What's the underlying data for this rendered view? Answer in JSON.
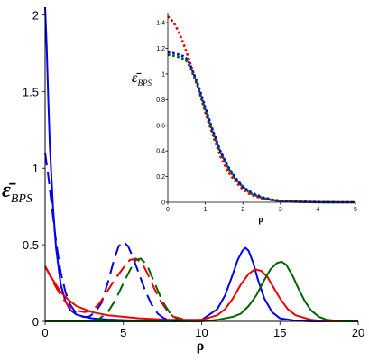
{
  "chart_data": [
    {
      "type": "line",
      "xlabel": "ρ",
      "ylabel_symbol": "ε̄",
      "ylabel_sub": "BPS",
      "xlim": [
        0,
        20
      ],
      "ylim": [
        0,
        2.05
      ],
      "xticks": [
        0,
        5,
        10,
        15,
        20
      ],
      "yticks": [
        0,
        0.5,
        1,
        1.5,
        2
      ],
      "xtick_labels": [
        "0",
        "5",
        "10",
        "15",
        "20"
      ],
      "ytick_labels": [
        "0",
        "0.5",
        "1",
        "1.5",
        "2"
      ],
      "grid": false,
      "series": [
        {
          "color": "#0000ee",
          "style": "solid",
          "x": [
            0,
            0.1,
            0.2,
            0.3,
            0.5,
            0.7,
            1.0,
            1.3,
            1.6,
            2.0,
            2.5,
            3.0,
            4.0,
            5.0,
            6.0,
            8.0,
            10.0,
            11.0,
            11.5,
            12.0,
            12.3,
            12.6,
            12.8,
            13.0,
            13.3,
            13.6,
            14.0,
            14.5,
            15.0,
            16.0,
            17.0,
            20.0
          ],
          "y": [
            2.05,
            1.8,
            1.45,
            1.15,
            0.75,
            0.48,
            0.24,
            0.13,
            0.075,
            0.045,
            0.03,
            0.02,
            0.012,
            0.008,
            0.005,
            0.002,
            0.01,
            0.08,
            0.17,
            0.31,
            0.4,
            0.46,
            0.48,
            0.46,
            0.38,
            0.27,
            0.15,
            0.06,
            0.02,
            0.004,
            0.0,
            0.0
          ]
        },
        {
          "color": "#ee0000",
          "style": "solid",
          "x": [
            0,
            0.5,
            1.0,
            1.5,
            2.0,
            3.0,
            4.0,
            5.0,
            6.0,
            8.0,
            10.0,
            11.0,
            11.5,
            12.0,
            12.5,
            13.0,
            13.4,
            13.8,
            14.2,
            14.6,
            15.0,
            15.5,
            16.0,
            17.0,
            18.0,
            20.0
          ],
          "y": [
            0.36,
            0.27,
            0.19,
            0.14,
            0.1,
            0.06,
            0.04,
            0.03,
            0.02,
            0.01,
            0.01,
            0.04,
            0.08,
            0.15,
            0.24,
            0.31,
            0.34,
            0.33,
            0.29,
            0.22,
            0.15,
            0.08,
            0.04,
            0.01,
            0.0,
            0.0
          ]
        },
        {
          "color": "#006400",
          "style": "solid",
          "x": [
            0,
            10.0,
            11.0,
            12.0,
            12.5,
            13.0,
            13.5,
            14.0,
            14.4,
            14.8,
            15.1,
            15.4,
            15.8,
            16.2,
            16.6,
            17.0,
            17.5,
            18.0,
            19.0,
            20.0
          ],
          "y": [
            0.0,
            0.0,
            0.01,
            0.03,
            0.05,
            0.1,
            0.17,
            0.27,
            0.34,
            0.38,
            0.39,
            0.37,
            0.3,
            0.21,
            0.13,
            0.07,
            0.03,
            0.01,
            0.0,
            0.0
          ]
        },
        {
          "color": "#0000ee",
          "style": "dashed",
          "x": [
            0,
            0.2,
            0.4,
            0.6,
            0.8,
            1.0,
            1.3,
            1.6,
            2.0,
            2.4,
            2.8,
            3.2,
            3.6,
            4.0,
            4.4,
            4.7,
            5.0,
            5.3,
            5.6,
            6.0,
            6.4,
            6.8,
            7.2,
            7.6,
            8.0,
            9.0
          ],
          "y": [
            1.1,
            0.95,
            0.78,
            0.6,
            0.45,
            0.32,
            0.19,
            0.11,
            0.05,
            0.03,
            0.03,
            0.06,
            0.12,
            0.25,
            0.4,
            0.49,
            0.52,
            0.49,
            0.42,
            0.31,
            0.2,
            0.11,
            0.05,
            0.02,
            0.01,
            0.0
          ]
        },
        {
          "color": "#ee0000",
          "style": "dashed",
          "x": [
            0,
            0.3,
            0.6,
            1.0,
            1.5,
            2.0,
            2.5,
            3.0,
            3.5,
            4.0,
            4.5,
            5.0,
            5.4,
            5.8,
            6.2,
            6.6,
            7.0,
            7.4,
            7.8,
            8.2,
            9.0,
            10.0
          ],
          "y": [
            0.36,
            0.3,
            0.24,
            0.17,
            0.1,
            0.07,
            0.06,
            0.07,
            0.12,
            0.2,
            0.28,
            0.35,
            0.4,
            0.41,
            0.38,
            0.3,
            0.21,
            0.13,
            0.07,
            0.03,
            0.01,
            0.0
          ]
        },
        {
          "color": "#006400",
          "style": "dashed",
          "x": [
            3.0,
            3.5,
            4.0,
            4.5,
            5.0,
            5.5,
            5.8,
            6.1,
            6.5,
            7.0,
            7.5,
            8.0,
            8.5,
            9.0
          ],
          "y": [
            0.0,
            0.02,
            0.06,
            0.14,
            0.25,
            0.35,
            0.4,
            0.41,
            0.37,
            0.25,
            0.13,
            0.05,
            0.01,
            0.0
          ]
        }
      ]
    },
    {
      "type": "line",
      "xlabel": "ρ",
      "ylabel_symbol": "ε̄",
      "ylabel_sub": "BPS",
      "xlim": [
        0,
        5
      ],
      "ylim": [
        0,
        1.45
      ],
      "xticks": [
        0,
        1,
        2,
        3,
        4,
        5
      ],
      "yticks": [
        0,
        0.2,
        0.4,
        0.6,
        0.8,
        1,
        1.2,
        1.4
      ],
      "xtick_labels": [
        "0",
        "1",
        "2",
        "3",
        "4",
        "5"
      ],
      "ytick_labels": [
        "0",
        "0.2",
        "0.4",
        "0.6",
        "0.8",
        "1",
        "1.2",
        "1.4"
      ],
      "grid": false,
      "series": [
        {
          "color": "#ee0000",
          "style": "dotted",
          "x": [
            0,
            0.1,
            0.2,
            0.3,
            0.4,
            0.5,
            0.6,
            0.8,
            1.0,
            1.2,
            1.4,
            1.6,
            1.8,
            2.0,
            2.2,
            2.5,
            2.8,
            3.0,
            3.5,
            4.0,
            4.5,
            5.0
          ],
          "y": [
            1.45,
            1.42,
            1.38,
            1.32,
            1.25,
            1.17,
            1.08,
            0.9,
            0.7,
            0.52,
            0.36,
            0.24,
            0.16,
            0.1,
            0.06,
            0.03,
            0.015,
            0.01,
            0.003,
            0.001,
            0.0,
            0.0
          ]
        },
        {
          "color": "#006400",
          "style": "dotted",
          "x": [
            0,
            0.2,
            0.4,
            0.5,
            0.6,
            0.8,
            1.0,
            1.2,
            1.4,
            1.6,
            1.8,
            2.0,
            2.2,
            2.5,
            2.8,
            3.0,
            3.5,
            4.0,
            4.5,
            5.0
          ],
          "y": [
            1.15,
            1.14,
            1.12,
            1.1,
            1.05,
            0.9,
            0.72,
            0.54,
            0.39,
            0.27,
            0.18,
            0.12,
            0.07,
            0.035,
            0.017,
            0.01,
            0.004,
            0.001,
            0.0,
            0.0
          ]
        },
        {
          "color": "#0000ee",
          "style": "dotted",
          "x": [
            0,
            0.2,
            0.4,
            0.5,
            0.6,
            0.8,
            1.0,
            1.2,
            1.4,
            1.6,
            1.8,
            2.0,
            2.2,
            2.5,
            2.8,
            3.0,
            3.5,
            4.0,
            4.5,
            5.0
          ],
          "y": [
            1.17,
            1.16,
            1.14,
            1.12,
            1.07,
            0.92,
            0.74,
            0.56,
            0.4,
            0.28,
            0.19,
            0.12,
            0.08,
            0.04,
            0.02,
            0.012,
            0.005,
            0.002,
            0.0,
            0.0
          ]
        }
      ]
    }
  ]
}
